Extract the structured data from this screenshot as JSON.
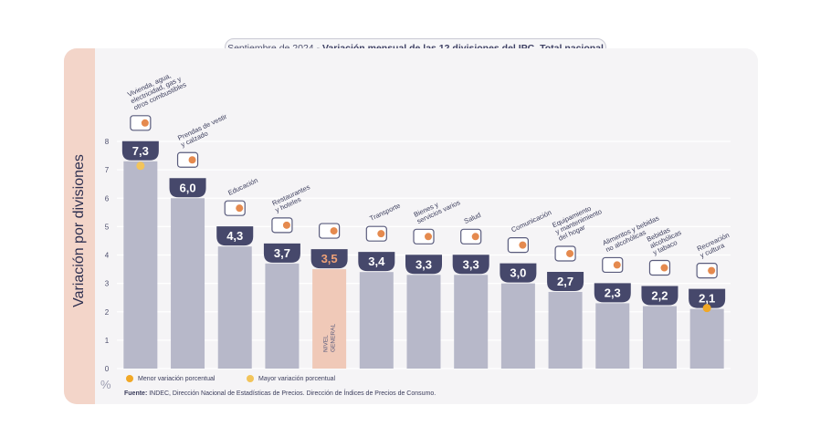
{
  "title": {
    "prefix": "Septiembre de 2024",
    "separator": " - ",
    "main": "Variación mensual de las 12 divisiones del IPC. Total nacional"
  },
  "legend": {
    "min_label": "Menor variación porcentual",
    "max_label": "Mayor variación porcentual",
    "min_color": "#f1a826",
    "max_color": "#f2c45a"
  },
  "source": {
    "label": "Fuente:",
    "text": " INDEC, Dirección Nacional de Estadísticas de Precios. Dirección de Índices de Precios de Consumo."
  },
  "unit_label": "%",
  "colors": {
    "bar": "#b7b8c9",
    "highlight_bar": "#f0c9b8",
    "badge": "#46486b",
    "badge_highlight_text": "#f0a277",
    "grid": "#ffffff"
  },
  "chart_data": {
    "type": "bar",
    "title": "Septiembre de 2024 - Variación mensual de las 12 divisiones del IPC. Total nacional",
    "ylabel": "Variación por divisiones",
    "ylim": [
      0,
      8
    ],
    "yticks": [
      0,
      1,
      2,
      3,
      4,
      5,
      6,
      7,
      8
    ],
    "grid": true,
    "categories": [
      "Vivienda, agua, electricidad, gas y otros combustibles",
      "Prendas de vestir y calzado",
      "Educación",
      "Restaurantes y hoteles",
      "Nivel general",
      "Transporte",
      "Bienes y servicios varios",
      "Salud",
      "Comunicación",
      "Equipamiento y mantenimiento del hogar",
      "Alimentos y bebidas no alcohólicas",
      "Bebidas alcohólicas y tabaco",
      "Recreación y cultura"
    ],
    "values": [
      7.3,
      6.0,
      4.3,
      3.7,
      3.5,
      3.4,
      3.3,
      3.3,
      3.0,
      2.7,
      2.3,
      2.2,
      2.1
    ],
    "value_labels": [
      "7,3",
      "6,0",
      "4,3",
      "3,7",
      "3,5",
      "3,4",
      "3,3",
      "3,3",
      "3,0",
      "2,7",
      "2,3",
      "2,2",
      "2,1"
    ],
    "category_label_lines": [
      [
        "Vivienda, agua,",
        "electricidad, gas y",
        "otros combustibles"
      ],
      [
        "Prendas de vestir",
        "y calzado"
      ],
      [
        "Educación"
      ],
      [
        "Restaurantes",
        "y hoteles"
      ],
      [
        "NIVEL",
        "GENERAL"
      ],
      [
        "Transporte"
      ],
      [
        "Bienes y",
        "servicios varios"
      ],
      [
        "Salud"
      ],
      [
        "Comunicación"
      ],
      [
        "Equipamiento",
        "y mantenimiento",
        "del hogar"
      ],
      [
        "Alimentos y bebidas",
        "no alcohólicas"
      ],
      [
        "Bebidas",
        "alcohólicas",
        "y tabaco"
      ],
      [
        "Recreación",
        "y cultura"
      ]
    ],
    "highlight_index": 4,
    "max_marker_index": 0,
    "min_marker_index": 12,
    "icons": [
      "house-tools-bulb-icon",
      "tshirt-icon",
      "book-pencil-icon",
      "cutlery-icon",
      "shopping-cart-icon",
      "bus-icon",
      "comb-brush-icon",
      "medical-cross-icon",
      "smartphone-icon",
      "appliance-icon",
      "food-basket-icon",
      "bottles-icon",
      "tent-sun-icon"
    ]
  }
}
